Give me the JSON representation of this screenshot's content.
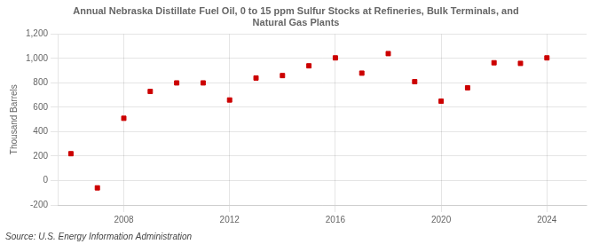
{
  "chart_data": {
    "type": "scatter",
    "title": "Annual Nebraska Distillate Fuel Oil, 0 to 15 ppm Sulfur Stocks at Refineries, Bulk Terminals, and\nNatural Gas Plants",
    "y_label": "Thousand Barrels",
    "annotation": "Source: U.S. Energy Information Administration",
    "x": [
      2006,
      2007,
      2008,
      2009,
      2010,
      2011,
      2012,
      2013,
      2014,
      2015,
      2016,
      2017,
      2018,
      2019,
      2020,
      2021,
      2022,
      2023,
      2024
    ],
    "values": [
      220,
      -60,
      510,
      730,
      800,
      800,
      660,
      840,
      860,
      940,
      1005,
      880,
      1040,
      810,
      650,
      760,
      965,
      960,
      1005
    ],
    "color": "#cc0000",
    "marker": "square",
    "xlim": [
      2005.5,
      2025.5
    ],
    "xticks": [
      2008,
      2012,
      2016,
      2020,
      2024
    ],
    "ylim": [
      -200,
      1200
    ],
    "yticks": [
      -200,
      0,
      200,
      400,
      600,
      800,
      {
        "value": 1000,
        "label": "1,000"
      },
      {
        "value": 1200,
        "label": "1,200"
      }
    ],
    "grid": true
  }
}
